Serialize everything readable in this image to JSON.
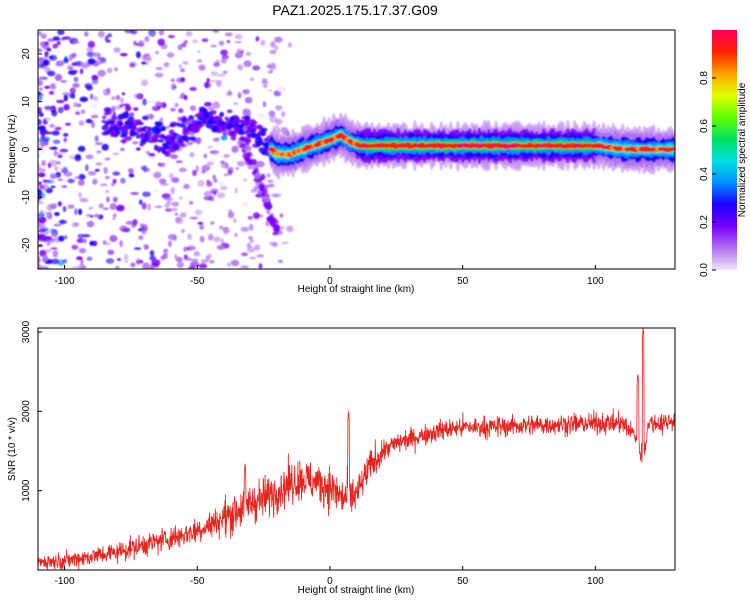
{
  "title": "PAZ1.2025.175.17.37.G09",
  "chart_data": [
    {
      "type": "heatmap",
      "xlabel": "Height of straight line (km)",
      "ylabel": "Frequency (Hz)",
      "xlim": [
        -110,
        130
      ],
      "ylim": [
        -25,
        25
      ],
      "xticks": [
        -100,
        -50,
        0,
        50,
        100
      ],
      "yticks": [
        -20,
        -10,
        0,
        10,
        20
      ],
      "colorbar": {
        "label": "Normalized spectral amplitude",
        "range": [
          0,
          1
        ],
        "ticks": [
          0.0,
          0.2,
          0.4,
          0.6,
          0.8
        ],
        "tick_labels": [
          "0.0",
          "0.2",
          "0.4",
          "0.6",
          "0.8"
        ],
        "colors": [
          "#f2e4fa",
          "#b070f0",
          "#7a00ff",
          "#1a00ff",
          "#0090ff",
          "#00e0e0",
          "#00e060",
          "#60ff00",
          "#e0ff00",
          "#ffa000",
          "#ff2000",
          "#ff0060"
        ]
      },
      "ridge": [
        {
          "x": -82,
          "y": 5.5
        },
        {
          "x": -75,
          "y": 4.5
        },
        {
          "x": -68,
          "y": 3.0
        },
        {
          "x": -60,
          "y": 2.5
        },
        {
          "x": -52,
          "y": 4.5
        },
        {
          "x": -47,
          "y": 7.0
        },
        {
          "x": -42,
          "y": 5.5
        },
        {
          "x": -35,
          "y": 5.0
        },
        {
          "x": -30,
          "y": 4.5
        },
        {
          "x": -25,
          "y": 1.5
        },
        {
          "x": -20,
          "y": -1.0
        },
        {
          "x": -15,
          "y": -1.0
        },
        {
          "x": -10,
          "y": 0.0
        },
        {
          "x": -5,
          "y": 1.0
        },
        {
          "x": 0,
          "y": 2.0
        },
        {
          "x": 4,
          "y": 3.0
        },
        {
          "x": 8,
          "y": 1.5
        },
        {
          "x": 12,
          "y": 0.8
        },
        {
          "x": 40,
          "y": 0.8
        },
        {
          "x": 80,
          "y": 0.8
        },
        {
          "x": 100,
          "y": 0.8
        },
        {
          "x": 112,
          "y": 0.0
        },
        {
          "x": 120,
          "y": 0.0
        },
        {
          "x": 130,
          "y": 0.0
        }
      ]
    },
    {
      "type": "line",
      "xlabel": "Height of straight line (km)",
      "ylabel": "SNR (10 * v/v)",
      "xlim": [
        -110,
        130
      ],
      "ylim": [
        0,
        3050
      ],
      "xticks": [
        -100,
        -50,
        0,
        50,
        100
      ],
      "yticks": [
        1000,
        2000,
        3000
      ],
      "color": "#e8221c",
      "series": [
        {
          "x": [
            -110,
            -100,
            -90,
            -80,
            -70,
            -60,
            -50,
            -40,
            -35,
            -30,
            -25,
            -20,
            -15,
            -10,
            -5,
            0,
            5,
            10,
            15,
            20,
            25,
            30,
            40,
            50,
            60,
            70,
            80,
            90,
            100,
            110,
            115,
            118,
            120,
            125,
            130
          ],
          "values": [
            100,
            120,
            170,
            230,
            320,
            400,
            500,
            650,
            750,
            850,
            900,
            1000,
            1100,
            1150,
            1100,
            1050,
            900,
            950,
            1300,
            1500,
            1600,
            1650,
            1750,
            1800,
            1800,
            1820,
            1830,
            1840,
            1850,
            1850,
            1700,
            1400,
            1850,
            1850,
            1900
          ]
        }
      ],
      "spikes": [
        {
          "x": 118,
          "y": 3050
        },
        {
          "x": 116,
          "y": 2480
        },
        {
          "x": 7,
          "y": 2000
        },
        {
          "x": -32,
          "y": 1340
        }
      ]
    }
  ]
}
